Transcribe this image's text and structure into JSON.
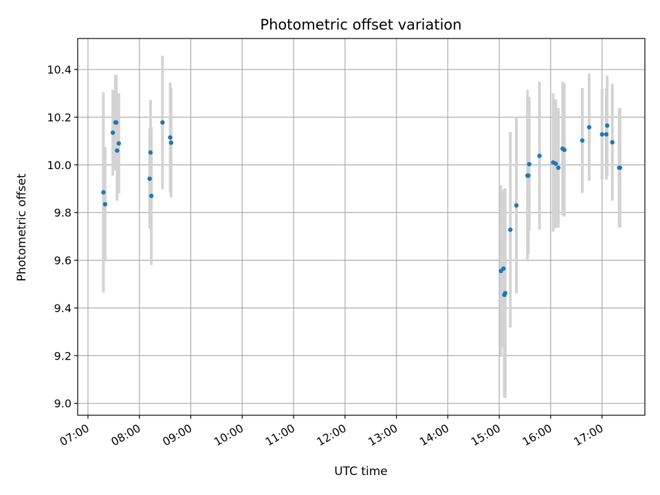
{
  "chart_data": {
    "type": "scatter",
    "title": "Photometric offset variation",
    "xlabel": "UTC time",
    "ylabel": "Photometric offset",
    "xlim": [
      "06:48",
      "17:50"
    ],
    "ylim": [
      8.95,
      10.53
    ],
    "x_ticks": [
      "07:00",
      "08:00",
      "09:00",
      "10:00",
      "11:00",
      "12:00",
      "13:00",
      "14:00",
      "15:00",
      "16:00",
      "17:00"
    ],
    "y_ticks": [
      "9.0",
      "9.2",
      "9.4",
      "9.6",
      "9.8",
      "10.0",
      "10.2",
      "10.4"
    ],
    "grid": true,
    "colors": {
      "marker": "#1f77b4",
      "errorbar": "#d3d3d3",
      "grid": "#b0b0b0"
    },
    "points": [
      {
        "x": "07:18",
        "y": 9.885,
        "err": 0.42
      },
      {
        "x": "07:20",
        "y": 9.835,
        "err": 0.24
      },
      {
        "x": "07:29",
        "y": 10.135,
        "err": 0.18
      },
      {
        "x": "07:32",
        "y": 10.178,
        "err": 0.2
      },
      {
        "x": "07:33",
        "y": 10.178,
        "err": 0.2
      },
      {
        "x": "07:34",
        "y": 10.06,
        "err": 0.21
      },
      {
        "x": "07:36",
        "y": 10.09,
        "err": 0.21
      },
      {
        "x": "08:12",
        "y": 9.942,
        "err": 0.21
      },
      {
        "x": "08:13",
        "y": 10.052,
        "err": 0.22
      },
      {
        "x": "08:14",
        "y": 9.87,
        "err": 0.29
      },
      {
        "x": "08:27",
        "y": 10.178,
        "err": 0.28
      },
      {
        "x": "08:36",
        "y": 10.115,
        "err": 0.23
      },
      {
        "x": "08:37",
        "y": 10.093,
        "err": 0.23
      },
      {
        "x": "15:02",
        "y": 9.555,
        "err": 0.36
      },
      {
        "x": "15:05",
        "y": 9.565,
        "err": 0.33
      },
      {
        "x": "15:06",
        "y": 9.455,
        "err": 0.43
      },
      {
        "x": "15:07",
        "y": 9.462,
        "err": 0.44
      },
      {
        "x": "15:13",
        "y": 9.728,
        "err": 0.41
      },
      {
        "x": "15:20",
        "y": 9.83,
        "err": 0.37
      },
      {
        "x": "15:33",
        "y": 9.955,
        "err": 0.36
      },
      {
        "x": "15:34",
        "y": 9.955,
        "err": 0.33
      },
      {
        "x": "15:35",
        "y": 10.003,
        "err": 0.28
      },
      {
        "x": "15:47",
        "y": 10.038,
        "err": 0.31
      },
      {
        "x": "16:03",
        "y": 10.01,
        "err": 0.29
      },
      {
        "x": "16:06",
        "y": 10.005,
        "err": 0.27
      },
      {
        "x": "16:09",
        "y": 9.988,
        "err": 0.25
      },
      {
        "x": "16:14",
        "y": 10.068,
        "err": 0.28
      },
      {
        "x": "16:16",
        "y": 10.063,
        "err": 0.28
      },
      {
        "x": "16:37",
        "y": 10.102,
        "err": 0.22
      },
      {
        "x": "16:45",
        "y": 10.158,
        "err": 0.225
      },
      {
        "x": "17:00",
        "y": 10.128,
        "err": 0.19
      },
      {
        "x": "17:05",
        "y": 10.128,
        "err": 0.19
      },
      {
        "x": "17:06",
        "y": 10.165,
        "err": 0.21
      },
      {
        "x": "17:12",
        "y": 10.095,
        "err": 0.245
      },
      {
        "x": "17:20",
        "y": 9.988,
        "err": 0.25
      },
      {
        "x": "17:21",
        "y": 9.988,
        "err": 0.25
      }
    ]
  }
}
